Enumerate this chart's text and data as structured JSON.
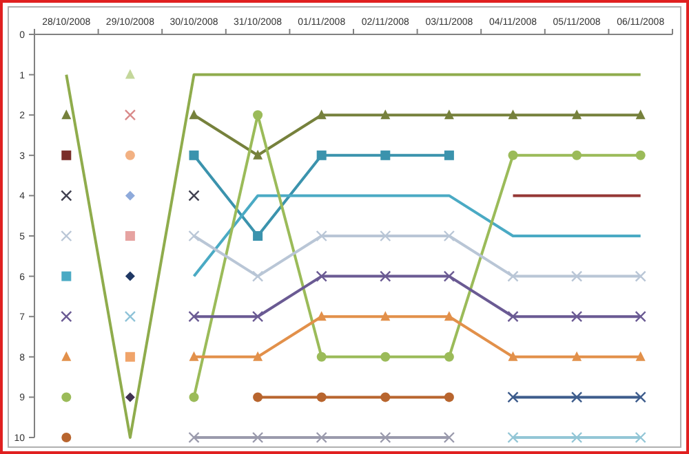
{
  "chart_data": {
    "type": "line",
    "categories": [
      "28/10/2008",
      "29/10/2008",
      "30/10/2008",
      "31/10/2008",
      "01/11/2008",
      "02/11/2008",
      "03/11/2008",
      "04/11/2008",
      "05/11/2008",
      "06/11/2008"
    ],
    "ylim": [
      10,
      0
    ],
    "yticks": [
      0,
      1,
      2,
      3,
      4,
      5,
      6,
      7,
      8,
      9,
      10
    ],
    "grid": false,
    "line_style": "solid",
    "series": [
      {
        "color": "#8fac4c",
        "marker": "none",
        "values": [
          1,
          10,
          1,
          1,
          1,
          1,
          1,
          1,
          1,
          1
        ]
      },
      {
        "color": "#76813c",
        "marker": "triangle",
        "values": [
          2,
          null,
          2,
          3,
          2,
          2,
          2,
          2,
          2,
          2
        ]
      },
      {
        "color": "#3b93ad",
        "marker": "square",
        "values": [
          null,
          null,
          3,
          5,
          3,
          3,
          3,
          null,
          null,
          null
        ]
      },
      {
        "color": "#4aaac4",
        "marker": "none",
        "values": [
          null,
          null,
          6,
          4,
          4,
          4,
          4,
          5,
          5,
          5
        ]
      },
      {
        "color": "#4aaac4",
        "marker": "square",
        "values": [
          6,
          null,
          null,
          null,
          null,
          null,
          null,
          null,
          null,
          null
        ]
      },
      {
        "color": "#9bbb59",
        "marker": "circle",
        "values": [
          9,
          null,
          9,
          2,
          8,
          8,
          8,
          3,
          3,
          3
        ]
      },
      {
        "color": "#b9c6d6",
        "marker": "cross",
        "values": [
          5,
          null,
          5,
          6,
          5,
          5,
          5,
          6,
          6,
          6
        ]
      },
      {
        "color": "#6a5a93",
        "marker": "cross",
        "values": [
          7,
          null,
          7,
          7,
          6,
          6,
          6,
          7,
          7,
          7
        ]
      },
      {
        "color": "#e2904a",
        "marker": "triangle",
        "values": [
          8,
          null,
          8,
          8,
          7,
          7,
          7,
          8,
          8,
          8
        ]
      },
      {
        "color": "#b8652e",
        "marker": "circle",
        "values": [
          10,
          null,
          null,
          9,
          9,
          9,
          9,
          null,
          null,
          null
        ]
      },
      {
        "color": "#9a9aac",
        "marker": "cross",
        "values": [
          null,
          null,
          10,
          10,
          10,
          10,
          10,
          null,
          null,
          null
        ]
      },
      {
        "color": "#953735",
        "marker": "none",
        "values": [
          null,
          null,
          null,
          null,
          null,
          null,
          null,
          4,
          4,
          4
        ]
      },
      {
        "color": "#3d5c8c",
        "marker": "cross",
        "values": [
          null,
          null,
          null,
          null,
          null,
          null,
          null,
          9,
          9,
          9
        ]
      },
      {
        "color": "#93c6d6",
        "marker": "cross",
        "values": [
          null,
          null,
          null,
          null,
          null,
          null,
          null,
          10,
          10,
          10
        ]
      },
      {
        "color": "#404050",
        "marker": "cross",
        "values": [
          4,
          null,
          4,
          null,
          null,
          null,
          null,
          null,
          null,
          null
        ]
      },
      {
        "color": "#7a2e2a",
        "marker": "square",
        "values": [
          3,
          null,
          null,
          null,
          null,
          null,
          null,
          null,
          null,
          null
        ]
      },
      {
        "color": "#c4d79b",
        "marker": "triangle",
        "values": [
          null,
          1,
          null,
          null,
          null,
          null,
          null,
          null,
          null,
          null
        ]
      },
      {
        "color": "#d98a8a",
        "marker": "cross",
        "values": [
          null,
          2,
          null,
          null,
          null,
          null,
          null,
          null,
          null,
          null
        ]
      },
      {
        "color": "#f2b183",
        "marker": "circle",
        "values": [
          null,
          3,
          null,
          null,
          null,
          null,
          null,
          null,
          null,
          null
        ]
      },
      {
        "color": "#8eaadb",
        "marker": "diamond",
        "values": [
          null,
          4,
          null,
          null,
          null,
          null,
          null,
          null,
          null,
          null
        ]
      },
      {
        "color": "#e6a3a1",
        "marker": "square",
        "values": [
          null,
          5,
          null,
          null,
          null,
          null,
          null,
          null,
          null,
          null
        ]
      },
      {
        "color": "#1f3864",
        "marker": "diamond",
        "values": [
          null,
          6,
          null,
          null,
          null,
          null,
          null,
          null,
          null,
          null
        ]
      },
      {
        "color": "#8fc3d8",
        "marker": "cross",
        "values": [
          null,
          7,
          null,
          null,
          null,
          null,
          null,
          null,
          null,
          null
        ]
      },
      {
        "color": "#f0a46a",
        "marker": "square",
        "values": [
          null,
          8,
          null,
          null,
          null,
          null,
          null,
          null,
          null,
          null
        ]
      },
      {
        "color": "#403151",
        "marker": "diamond",
        "values": [
          null,
          9,
          null,
          null,
          null,
          null,
          null,
          null,
          null,
          null
        ]
      }
    ]
  }
}
